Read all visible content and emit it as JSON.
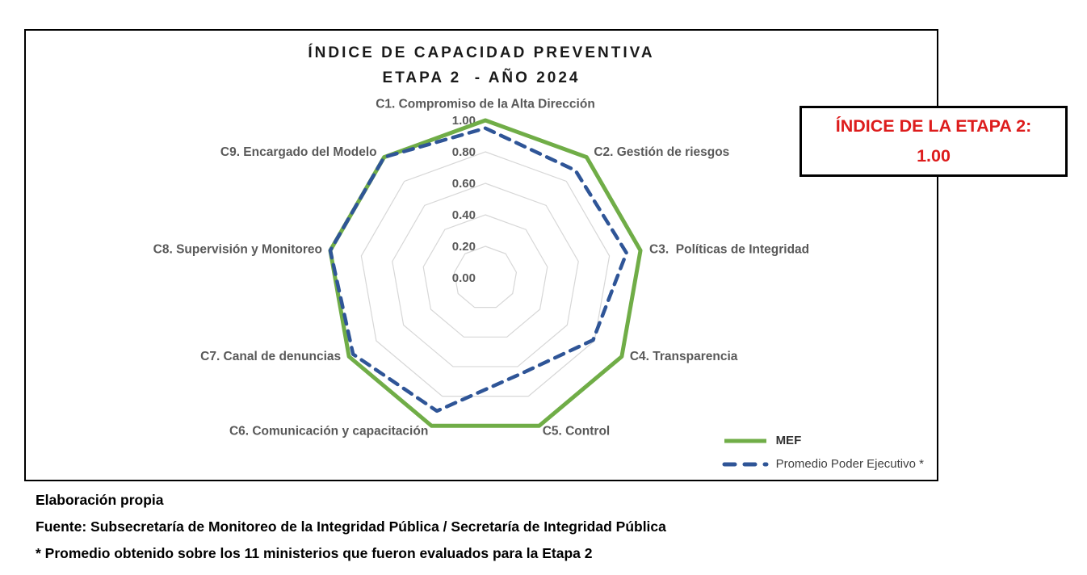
{
  "title": {
    "line1": "ÍNDICE DE CAPACIDAD PREVENTIVA",
    "line2": "ETAPA 2  - AÑO 2024"
  },
  "index_box": {
    "line1": "ÍNDICE DE LA ETAPA 2:",
    "line2": "1.00"
  },
  "footer": {
    "line1": "Elaboración propia",
    "line2": "Fuente: Subsecretaría de Monitoreo de la Integridad Pública / Secretaría de Integridad Pública",
    "line3": "* Promedio obtenido sobre los 11 ministerios que fueron evaluados para la Etapa 2"
  },
  "colors": {
    "mef_green": "#70AD47",
    "promedio_blue": "#2F5597",
    "grid_gray": "#D7D7D7",
    "label_gray": "#595959",
    "index_red": "#DD1C1C"
  },
  "chart_data": {
    "type": "radar",
    "title": "ÍNDICE DE CAPACIDAD PREVENTIVA ETAPA 2 - AÑO 2024",
    "categories": [
      "C1. Compromiso de la Alta Dirección",
      "C2. Gestión de riesgos",
      "C3.  Políticas de Integridad",
      "C4. Transparencia",
      "C5. Control",
      "C6. Comunicación y capacitación",
      "C7. Canal de denuncias",
      "C8. Supervisión y Monitoreo",
      "C9. Encargado del Modelo"
    ],
    "series": [
      {
        "name": "MEF",
        "style": "solid",
        "color": "#70AD47",
        "values": [
          1.0,
          1.0,
          1.0,
          1.0,
          1.0,
          1.0,
          1.0,
          1.0,
          1.0
        ]
      },
      {
        "name": "Promedio Poder Ejecutivo *",
        "style": "dashed",
        "color": "#2F5597",
        "values": [
          0.95,
          0.89,
          0.91,
          0.79,
          0.65,
          0.9,
          0.97,
          1.0,
          1.0
        ]
      }
    ],
    "ticks": [
      1.0,
      0.8,
      0.6,
      0.4,
      0.2,
      0.0
    ],
    "tick_labels": [
      "1.00",
      "0.80",
      "0.60",
      "0.40",
      "0.20",
      "0.00"
    ],
    "rmin": 0.0,
    "rmax": 1.0,
    "grid": true,
    "legend_position": "bottom-right"
  }
}
